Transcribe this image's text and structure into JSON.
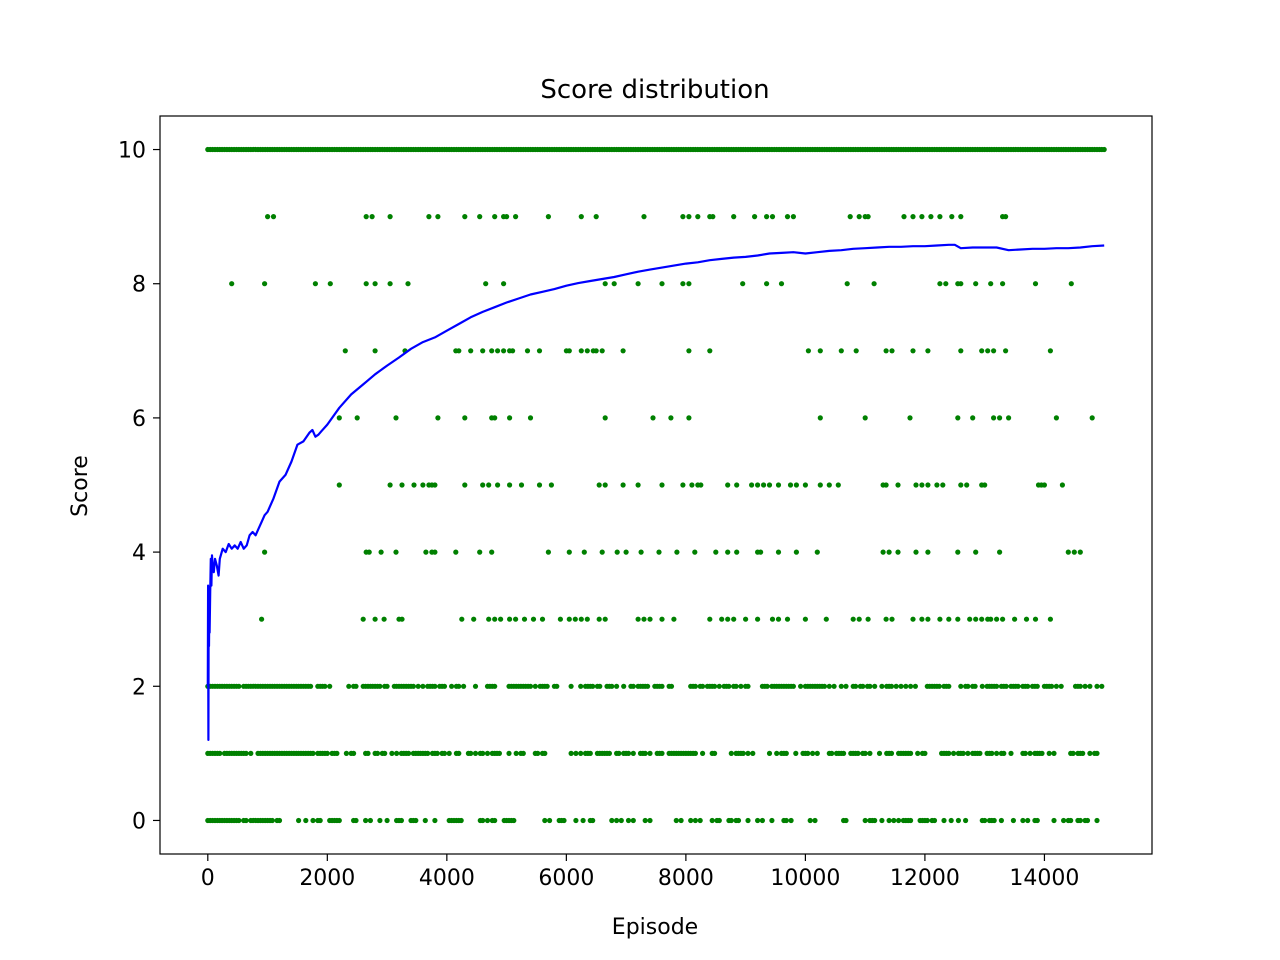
{
  "chart_data": {
    "type": "scatter",
    "title": "Score distribution",
    "xlabel": "Episode",
    "ylabel": "Score",
    "xlim": [
      -800,
      15800
    ],
    "ylim": [
      -0.5,
      10.5
    ],
    "xticks": [
      0,
      2000,
      4000,
      6000,
      8000,
      10000,
      12000,
      14000
    ],
    "yticks": [
      0,
      2,
      4,
      6,
      8,
      10
    ],
    "grid": false,
    "scatter_color": "#008000",
    "line_color": "#0000ff",
    "episodes": 15000,
    "scores_dense": [
      10,
      2,
      1,
      0
    ],
    "sparse_points": {
      "9": [
        1000,
        1100,
        2650,
        2750,
        3050,
        3700,
        3850,
        4300,
        4550,
        4800,
        4950,
        5000,
        5150,
        5700,
        6250,
        6500,
        7300,
        7950,
        8050,
        8200,
        8400,
        8450,
        8800,
        9150,
        9350,
        9450,
        9700,
        9800,
        10750,
        10900,
        11000,
        11050,
        11650,
        11800,
        11950,
        12100,
        12250,
        12450,
        12600,
        13300,
        13350
      ],
      "8": [
        400,
        950,
        1800,
        2050,
        2650,
        2800,
        3050,
        3350,
        4650,
        4950,
        6650,
        6800,
        7200,
        7600,
        7950,
        8050,
        8950,
        9350,
        9600,
        10700,
        11150,
        12250,
        12350,
        12550,
        12600,
        12850,
        13100,
        13300,
        13850,
        14450
      ],
      "7": [
        2300,
        2800,
        3300,
        4150,
        4200,
        4400,
        4600,
        4750,
        4850,
        4950,
        5050,
        5100,
        5350,
        5550,
        6000,
        6050,
        6250,
        6350,
        6450,
        6500,
        6600,
        6950,
        8050,
        8400,
        10050,
        10250,
        10600,
        10850,
        11350,
        11450,
        11800,
        12050,
        12600,
        12950,
        13050,
        13150,
        13350,
        14100
      ],
      "6": [
        2200,
        2500,
        3150,
        3850,
        4300,
        4750,
        4800,
        5050,
        5400,
        6650,
        7450,
        7750,
        8050,
        10250,
        11000,
        11750,
        12550,
        12800,
        13150,
        13250,
        13400,
        14200,
        14800
      ],
      "5": [
        2200,
        3050,
        3250,
        3450,
        3600,
        3700,
        3750,
        3800,
        4300,
        4600,
        4700,
        4850,
        5050,
        5250,
        5550,
        5750,
        6550,
        6650,
        6950,
        7200,
        7600,
        7950,
        8100,
        8200,
        8250,
        8700,
        8850,
        9100,
        9200,
        9300,
        9400,
        9550,
        9750,
        9850,
        10000,
        10250,
        10400,
        10550,
        11300,
        11350,
        11550,
        11850,
        11950,
        12050,
        12200,
        12300,
        12600,
        12700,
        12950,
        13000,
        13900,
        13950,
        14000,
        14300
      ],
      "4": [
        950,
        2650,
        2700,
        2900,
        3150,
        3650,
        3750,
        3800,
        4150,
        4550,
        4750,
        5700,
        6050,
        6300,
        6600,
        6850,
        7000,
        7250,
        7550,
        7850,
        8150,
        8500,
        8700,
        8850,
        9200,
        9250,
        9550,
        9850,
        10200,
        11300,
        11400,
        11550,
        11850,
        12050,
        12550,
        12850,
        13250,
        14400,
        14500,
        14600
      ],
      "3": [
        900,
        2600,
        2800,
        2950,
        3200,
        3250,
        4250,
        4450,
        4700,
        4800,
        4900,
        5050,
        5150,
        5300,
        5450,
        5600,
        5900,
        6050,
        6150,
        6250,
        6350,
        6550,
        6650,
        7200,
        7300,
        7400,
        7600,
        7800,
        8400,
        8600,
        8700,
        8800,
        9000,
        9200,
        9450,
        9550,
        9700,
        10000,
        10350,
        10800,
        10900,
        11050,
        11350,
        11450,
        11800,
        11950,
        12050,
        12250,
        12400,
        12550,
        12750,
        12850,
        12950,
        13050,
        13100,
        13200,
        13300,
        13500,
        13700,
        13850,
        14100
      ]
    },
    "running_mean": {
      "x": [
        0,
        5,
        10,
        15,
        20,
        25,
        30,
        40,
        50,
        60,
        70,
        80,
        100,
        120,
        150,
        180,
        200,
        250,
        300,
        350,
        400,
        450,
        500,
        550,
        600,
        650,
        700,
        750,
        800,
        850,
        900,
        950,
        1000,
        1100,
        1200,
        1300,
        1400,
        1500,
        1600,
        1700,
        1750,
        1800,
        1850,
        1900,
        2000,
        2200,
        2400,
        2600,
        2800,
        3000,
        3200,
        3400,
        3600,
        3800,
        4000,
        4200,
        4400,
        4600,
        4800,
        5000,
        5200,
        5400,
        5600,
        5800,
        6000,
        6200,
        6400,
        6600,
        6800,
        7000,
        7200,
        7400,
        7600,
        7800,
        8000,
        8200,
        8400,
        8600,
        8800,
        9000,
        9200,
        9400,
        9600,
        9800,
        10000,
        10200,
        10400,
        10600,
        10800,
        11000,
        11200,
        11400,
        11600,
        11800,
        12000,
        12200,
        12400,
        12500,
        12600,
        12800,
        13000,
        13200,
        13400,
        13600,
        13800,
        14000,
        14200,
        14400,
        14600,
        14800,
        15000
      ],
      "y": [
        2.0,
        3.5,
        1.2,
        3.4,
        2.6,
        3.2,
        2.8,
        3.4,
        3.9,
        3.5,
        3.95,
        3.8,
        3.7,
        3.9,
        3.8,
        3.65,
        3.9,
        4.05,
        4.0,
        4.12,
        4.05,
        4.1,
        4.05,
        4.15,
        4.05,
        4.1,
        4.25,
        4.3,
        4.25,
        4.35,
        4.45,
        4.55,
        4.6,
        4.8,
        5.05,
        5.15,
        5.35,
        5.6,
        5.65,
        5.78,
        5.82,
        5.72,
        5.75,
        5.8,
        5.9,
        6.15,
        6.35,
        6.5,
        6.65,
        6.78,
        6.9,
        7.03,
        7.13,
        7.2,
        7.3,
        7.4,
        7.5,
        7.58,
        7.65,
        7.72,
        7.78,
        7.84,
        7.88,
        7.92,
        7.97,
        8.01,
        8.04,
        8.07,
        8.1,
        8.14,
        8.18,
        8.21,
        8.24,
        8.27,
        8.3,
        8.32,
        8.35,
        8.37,
        8.39,
        8.4,
        8.42,
        8.45,
        8.46,
        8.47,
        8.45,
        8.47,
        8.49,
        8.5,
        8.52,
        8.53,
        8.54,
        8.55,
        8.55,
        8.56,
        8.56,
        8.57,
        8.58,
        8.58,
        8.53,
        8.54,
        8.54,
        8.54,
        8.5,
        8.51,
        8.52,
        8.52,
        8.53,
        8.53,
        8.54,
        8.56,
        8.57
      ]
    }
  }
}
